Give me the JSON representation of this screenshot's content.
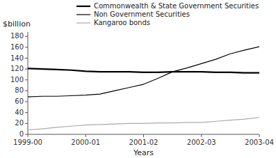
{
  "chart_data": {
    "type": "line",
    "x_label": "Years",
    "y_label": "$billion",
    "x": [
      0,
      0.25,
      0.5,
      0.75,
      1.0,
      1.25,
      1.5,
      1.75,
      2.0,
      2.25,
      2.5,
      2.75,
      3.0,
      3.25,
      3.5,
      3.75,
      4.0
    ],
    "series": [
      {
        "name": "Commonwealth & State Government Securities",
        "color": "#000000",
        "line_style": "solid",
        "values": [
          121,
          120,
          119,
          118,
          116,
          115,
          115,
          115,
          114,
          114,
          115,
          115,
          115,
          114,
          114,
          113,
          113
        ]
      },
      {
        "name": "Non Government Securities",
        "color": "#000000",
        "line_style": "solid",
        "values": [
          69,
          70,
          70,
          71,
          72,
          74,
          80,
          86,
          92,
          103,
          115,
          122,
          130,
          138,
          148,
          155,
          161
        ]
      },
      {
        "name": "Kangaroo bonds",
        "color": "#aaaaaa",
        "line_style": "solid",
        "values": [
          8,
          10,
          13,
          15,
          17,
          18,
          19,
          20,
          20,
          21,
          21,
          22,
          22,
          24,
          26,
          28,
          31
        ]
      }
    ],
    "xlim": [
      0,
      4
    ],
    "xticks": [
      {
        "value": 0,
        "label": "1999-00"
      },
      {
        "value": 1,
        "label": "2000-01"
      },
      {
        "value": 2,
        "label": "2001-02"
      },
      {
        "value": 3,
        "label": "2002-03"
      },
      {
        "value": 4,
        "label": "2003-04"
      }
    ],
    "ylim": [
      0,
      188
    ],
    "yticks": [
      0,
      20,
      40,
      60,
      80,
      100,
      120,
      140,
      160,
      180
    ],
    "grid": false,
    "legend": "top"
  }
}
